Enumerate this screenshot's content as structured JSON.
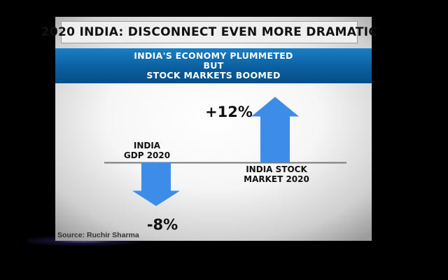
{
  "title": "2020 INDIA: DISCONNECT EVEN MORE  DRAMATIC",
  "banner": {
    "line1": "INDIA'S ECONOMY PLUMMETED",
    "line2": "BUT",
    "line3": "STOCK MARKETS BOOMED"
  },
  "gdp": {
    "label_line1": "INDIA",
    "label_line2": "GDP 2020",
    "value_label": "-8%",
    "value": -8
  },
  "stock": {
    "label_line1": "INDIA STOCK",
    "label_line2": "MARKET 2020",
    "value_label": "+12%",
    "value": 12
  },
  "source": "Source: Ruchir Sharma",
  "colors": {
    "arrow": "#3d8de8",
    "banner": "#0a5f9e",
    "baseline": "#777777"
  }
}
